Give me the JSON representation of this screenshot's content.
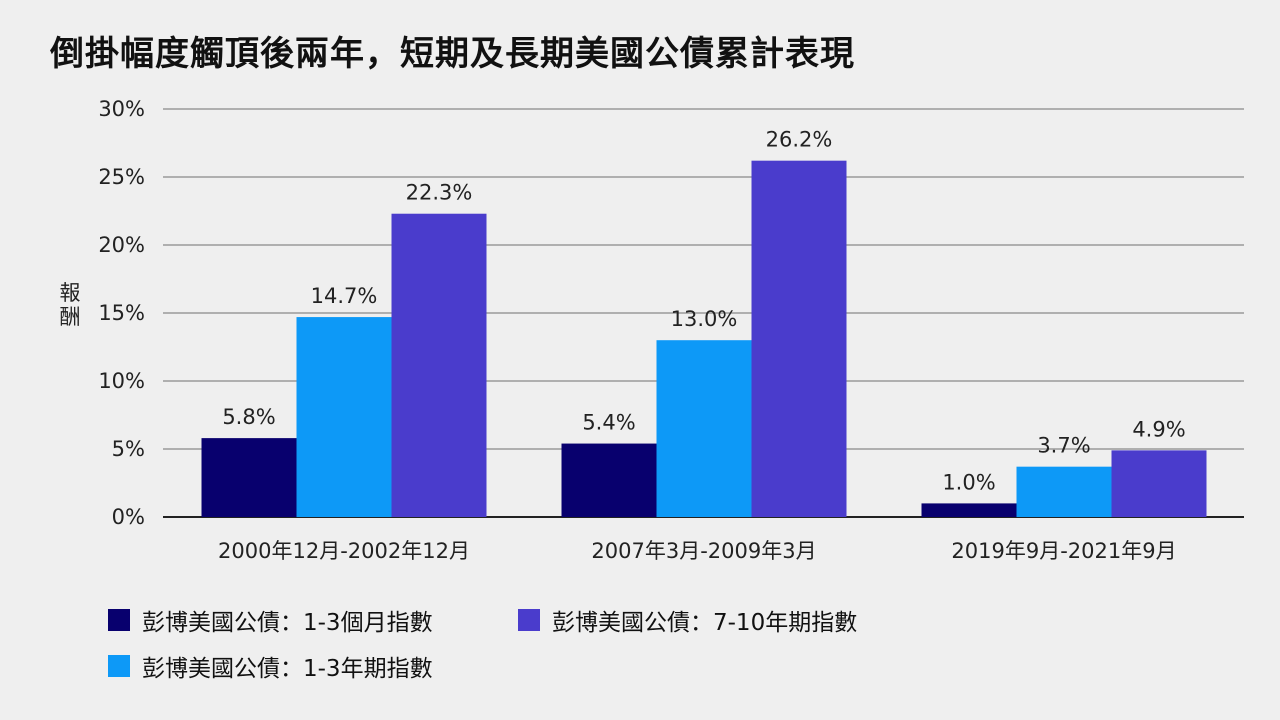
{
  "chart_data": {
    "type": "bar",
    "title": "倒掛幅度觸頂後兩年，短期及長期美國公債累計表現",
    "xlabel": "",
    "ylabel": "報酬",
    "ylim": [
      0,
      30
    ],
    "yticks": [
      0,
      5,
      10,
      15,
      20,
      25,
      30
    ],
    "ytick_labels": [
      "0%",
      "5%",
      "10%",
      "15%",
      "20%",
      "25%",
      "30%"
    ],
    "grid": true,
    "legend_position": "bottom-left",
    "categories": [
      "2000年12月-2002年12月",
      "2007年3月-2009年3月",
      "2019年9月-2021年9月"
    ],
    "series": [
      {
        "name": "彭博美國公債：1-3個月指數",
        "color": "#08006e",
        "values": [
          5.8,
          5.4,
          1.0
        ],
        "labels": [
          "5.8%",
          "5.4%",
          "1.0%"
        ]
      },
      {
        "name": "彭博美國公債：1-3年期指數",
        "color": "#0d99f7",
        "values": [
          14.7,
          13.0,
          3.7
        ],
        "labels": [
          "14.7%",
          "13.0%",
          "3.7%"
        ]
      },
      {
        "name": "彭博美國公債：7-10年期指數",
        "color": "#4a3ccc",
        "values": [
          22.3,
          26.2,
          4.9
        ],
        "labels": [
          "22.3%",
          "26.2%",
          "4.9%"
        ]
      }
    ]
  }
}
